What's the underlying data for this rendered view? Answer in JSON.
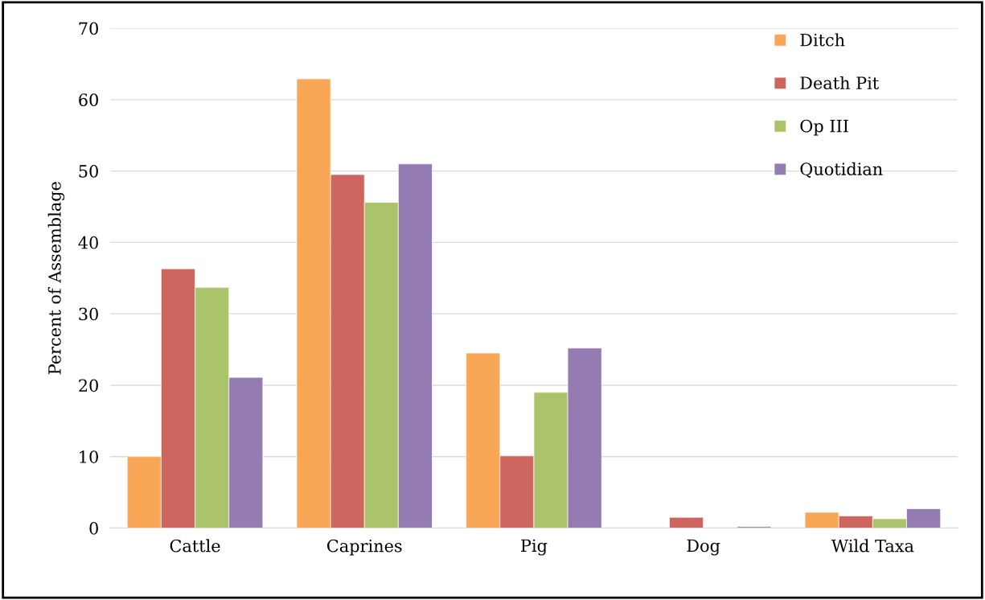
{
  "chart_data": {
    "type": "bar",
    "ylabel": "Percent of Assemblage",
    "categories": [
      "Cattle",
      "Caprines",
      "Pig",
      "Dog",
      "Wild Taxa"
    ],
    "series": [
      {
        "name": "Ditch",
        "color": "#f9a656",
        "values": [
          10.0,
          62.9,
          24.5,
          null,
          2.2
        ]
      },
      {
        "name": "Death Pit",
        "color": "#cd665e",
        "values": [
          36.3,
          49.5,
          10.1,
          1.5,
          1.7
        ]
      },
      {
        "name": "Op III",
        "color": "#abc46b",
        "values": [
          33.7,
          45.6,
          19.0,
          null,
          1.3
        ]
      },
      {
        "name": "Quotidian",
        "color": "#947bb1",
        "values": [
          21.1,
          51.0,
          25.2,
          0.2,
          2.7
        ]
      }
    ],
    "ylim": [
      0,
      70
    ],
    "yticks": [
      0,
      10,
      20,
      30,
      40,
      50,
      60,
      70
    ],
    "grid": "y",
    "legend": "top right"
  }
}
